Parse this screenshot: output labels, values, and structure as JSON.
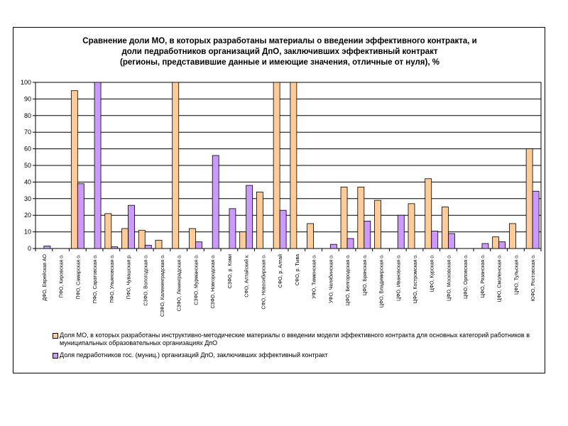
{
  "colors": {
    "series1": "#FFCC99",
    "series2": "#CC99FF",
    "stroke": "#000000"
  },
  "chart_data": {
    "type": "bar",
    "title_lines": [
      "Сравнение доли МО, в которых разработаны материалы о введении эффективного контракта, и",
      "доли педработников организаций ДпО, заключивших эффективный контракт",
      "(регионы, представившие данные и имеющие значения, отличные от нуля), %"
    ],
    "ylim": [
      0,
      100
    ],
    "yticks": [
      0,
      10,
      20,
      30,
      40,
      50,
      60,
      70,
      80,
      90,
      100
    ],
    "categories": [
      "ДФО, Еврейская АО",
      "ПФО, Кировская о.",
      "ПФО, Самарская о.",
      "ПФО, Саратовская о.",
      "ПФО, Ульяновская о.",
      "ПФО, Чувашская р.",
      "СЗФО, Вологодская о.",
      "СЗФО, Калининградская о.",
      "СЗФО, Ленинградская о.",
      "СЗФО, Мурманская о.",
      "СЗФО, Новгородская о.",
      "СЗФО, р. Коми",
      "СФО, Алтайский к.",
      "СФО, Новосибирская о.",
      "СФО, р. Алтай",
      "СФО, р. Тыва",
      "УФО, Тюменская о.",
      "УФО, Челябинская о.",
      "ЦФО, Белгородская о.",
      "ЦФО, Брянская о.",
      "ЦФО, Владимирская о.",
      "ЦФО, Ивановская о.",
      "ЦФО, Костромская о.",
      "ЦФО, Курская о.",
      "ЦФО, Московская о.",
      "ЦФО, Орловская о.",
      "ЦФО, Рязанская о.",
      "ЦФО, Смоленская о.",
      "ЦФО, Тульская о.",
      "ЮФО, Ростовская о."
    ],
    "series": [
      {
        "name": "Доля МО, в которых разработаны инструктивно-методические материалы о введении модели эффективного контракта для основных категорий работников в муниципальных образовательных организациях ДпО",
        "values": [
          0,
          0,
          95,
          0,
          21,
          12,
          11,
          5,
          100,
          12,
          0,
          0,
          10,
          34,
          100,
          100,
          15,
          0,
          37,
          37,
          29,
          0,
          27,
          42,
          25,
          0,
          0,
          7,
          15,
          60
        ]
      },
      {
        "name": "Доля педработников гос. (муниц.) организаций ДпО, заключивших эффективный контракт",
        "values": [
          1.5,
          0,
          39,
          100,
          1,
          26,
          2,
          0,
          0,
          4,
          56,
          24,
          38,
          0,
          23,
          0,
          0,
          2.5,
          6,
          16.5,
          0,
          20,
          0,
          10.5,
          9,
          0,
          3,
          4,
          0,
          34.5
        ]
      }
    ]
  }
}
